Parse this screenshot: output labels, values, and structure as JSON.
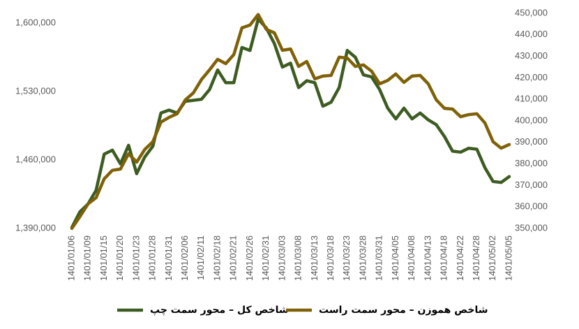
{
  "chart_data": {
    "type": "line",
    "categories": [
      "1401/01/06",
      null,
      "1401/01/09",
      null,
      "1401/01/15",
      null,
      "1401/01/20",
      null,
      "1401/01/23",
      null,
      "1401/01/28",
      null,
      "1401/01/31",
      null,
      "1401/02/06",
      null,
      "1401/02/11",
      null,
      "1401/02/18",
      null,
      "1401/02/21",
      null,
      "1401/02/26",
      null,
      "1401/02/31",
      null,
      "1401/03/03",
      null,
      "1401/03/08",
      null,
      "1401/03/13",
      null,
      "1401/03/18",
      null,
      "1401/03/23",
      null,
      "1401/03/28",
      null,
      "1401/03/31",
      null,
      "1401/04/05",
      null,
      "1401/04/08",
      null,
      "1401/04/13",
      null,
      "1401/04/18",
      null,
      "1401/04/22",
      null,
      "1401/04/28",
      null,
      "1401/05/02",
      null,
      "1401/05/05"
    ],
    "series": [
      {
        "name": "شاخص کل – محور سمت چپ",
        "color": "#3d5c22",
        "axis": "y",
        "values": [
          1391000,
          1407000,
          1415000,
          1429000,
          1466000,
          1470000,
          1456000,
          1475000,
          1446000,
          1463000,
          1474000,
          1508000,
          1511000,
          1508000,
          1520000,
          1521000,
          1522000,
          1532000,
          1552000,
          1539000,
          1539000,
          1575000,
          1572000,
          1604000,
          1595000,
          1579000,
          1555000,
          1559000,
          1534000,
          1541000,
          1539000,
          1515000,
          1519000,
          1534000,
          1572000,
          1565000,
          1547000,
          1545000,
          1532000,
          1513000,
          1502000,
          1513000,
          1502000,
          1508000,
          1501000,
          1496000,
          1484000,
          1469000,
          1468000,
          1472000,
          1471000,
          1452000,
          1438000,
          1437000,
          1443000
        ]
      },
      {
        "name": "شاخص هموزن – محور سمت راست",
        "color": "#7f6108",
        "axis": "y2",
        "values": [
          350000,
          355500,
          361400,
          364300,
          373100,
          377000,
          377600,
          384700,
          380800,
          386700,
          390300,
          399400,
          401600,
          403300,
          409700,
          413000,
          419200,
          423700,
          428600,
          426600,
          430800,
          443200,
          444500,
          449400,
          442500,
          440900,
          432800,
          433400,
          425300,
          427600,
          419500,
          420800,
          421100,
          429600,
          429200,
          425300,
          426000,
          423100,
          417200,
          418800,
          421800,
          417900,
          420800,
          421100,
          417200,
          409700,
          405800,
          405500,
          401900,
          402900,
          403300,
          399000,
          390300,
          387300,
          389000
        ]
      }
    ],
    "ylim": [
      1390000,
      1610000
    ],
    "yticks": [
      {
        "value": 1390000,
        "label": "1,390,000"
      },
      {
        "value": 1460000,
        "label": "1,460,000"
      },
      {
        "value": 1530000,
        "label": "1,530,000"
      },
      {
        "value": 1600000,
        "label": "1,600,000"
      }
    ],
    "y2lim": [
      350000,
      450000
    ],
    "y2ticks": [
      {
        "value": 350000,
        "label": "350,000"
      },
      {
        "value": 360000,
        "label": "360,000"
      },
      {
        "value": 370000,
        "label": "370,000"
      },
      {
        "value": 380000,
        "label": "380,000"
      },
      {
        "value": 390000,
        "label": "390,000"
      },
      {
        "value": 400000,
        "label": "400,000"
      },
      {
        "value": 410000,
        "label": "410,000"
      },
      {
        "value": 420000,
        "label": "420,000"
      },
      {
        "value": 430000,
        "label": "430,000"
      },
      {
        "value": 440000,
        "label": "440,000"
      },
      {
        "value": 450000,
        "label": "450,000"
      }
    ],
    "grid": false,
    "legend": "bottom"
  }
}
